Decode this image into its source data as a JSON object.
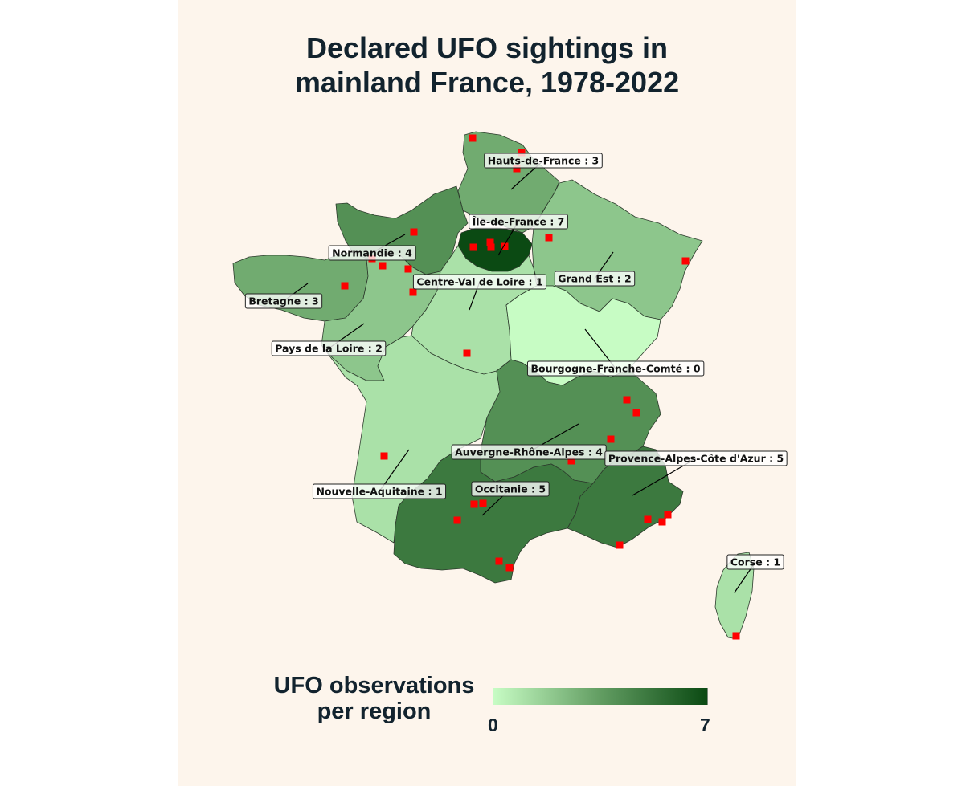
{
  "title": {
    "line1": "Declared UFO sightings in",
    "line2": "mainland France, 1978-2022"
  },
  "colors": {
    "background": "#fdf5ec",
    "scale_low": "#c7fcc4",
    "scale_high": "#0b4a13",
    "sighting_marker": "#ff0000"
  },
  "legend": {
    "title_line1": "UFO observations",
    "title_line2": "per region",
    "min_label": "0",
    "max_label": "7",
    "min": 0,
    "max": 7
  },
  "regions": [
    {
      "id": "hauts-de-france",
      "name": "Hauts-de-France",
      "count": 3,
      "label": "Hauts-de-France : 3"
    },
    {
      "id": "ile-de-france",
      "name": "Île-de-France",
      "count": 7,
      "label": "Île-de-France : 7"
    },
    {
      "id": "normandie",
      "name": "Normandie",
      "count": 4,
      "label": "Normandie : 4"
    },
    {
      "id": "grand-est",
      "name": "Grand Est",
      "count": 2,
      "label": "Grand Est : 2"
    },
    {
      "id": "centre-val-de-loire",
      "name": "Centre-Val de Loire",
      "count": 1,
      "label": "Centre-Val de Loire : 1"
    },
    {
      "id": "bretagne",
      "name": "Bretagne",
      "count": 3,
      "label": "Bretagne : 3"
    },
    {
      "id": "pays-de-la-loire",
      "name": "Pays de la Loire",
      "count": 2,
      "label": "Pays de la Loire : 2"
    },
    {
      "id": "bourgogne-franche-comte",
      "name": "Bourgogne-Franche-Comté",
      "count": 0,
      "label": "Bourgogne-Franche-Comté : 0"
    },
    {
      "id": "auvergne-rhone-alpes",
      "name": "Auvergne-Rhône-Alpes",
      "count": 4,
      "label": "Auvergne-Rhône-Alpes : 4"
    },
    {
      "id": "provence-alpes-cote-dazur",
      "name": "Provence-Alpes-Côte d'Azur",
      "count": 5,
      "label": "Provence-Alpes-Côte d'Azur : 5"
    },
    {
      "id": "nouvelle-aquitaine",
      "name": "Nouvelle-Aquitaine",
      "count": 1,
      "label": "Nouvelle-Aquitaine : 1"
    },
    {
      "id": "occitanie",
      "name": "Occitanie",
      "count": 5,
      "label": "Occitanie : 5"
    },
    {
      "id": "corse",
      "name": "Corse",
      "count": 1,
      "label": "Corse : 1"
    }
  ]
}
